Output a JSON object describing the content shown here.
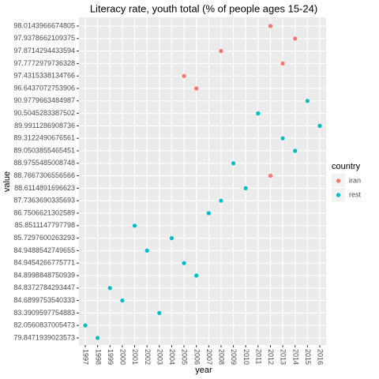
{
  "chart_data": {
    "type": "scatter",
    "title": "Literacy rate, youth total (% of people ages 15-24)",
    "x_label": "year",
    "y_label": "value",
    "legend_title": "country",
    "xcategories": [
      "1997",
      "1998",
      "1999",
      "2000",
      "2001",
      "2002",
      "2003",
      "2004",
      "2005",
      "2006",
      "2007",
      "2008",
      "2009",
      "2010",
      "2011",
      "2012",
      "2013",
      "2014",
      "2015",
      "2016"
    ],
    "yticks": [
      79.8471939023573,
      82.0560837005473,
      83.3909597754883,
      84.6899753540333,
      84.8372784293447,
      84.8998848750939,
      84.9454266775771,
      84.9488542749655,
      85.7297600263293,
      85.8511147797798,
      86.7506621302589,
      87.7363690335693,
      88.6114891696623,
      88.7667306556566,
      88.9755485008748,
      89.0503855465451,
      89.3122490676561,
      89.9911286908736,
      90.5045283387502,
      90.9779663484987,
      96.6437072753906,
      97.4315338134766,
      97.7772979736328,
      97.8714294433594,
      97.9378662109375,
      98.0143966674805
    ],
    "grid": true,
    "series": [
      {
        "name": "iran",
        "color": "#F8766D",
        "x": [
          "2012",
          "2014",
          "2008",
          "2013",
          "2005",
          "2006",
          "2012"
        ],
        "values": [
          98.0143966674805,
          97.9378662109375,
          97.8714294433594,
          97.7772979736328,
          97.4315338134766,
          96.6437072753906,
          88.7667306556566
        ]
      },
      {
        "name": "rest",
        "color": "#00BFC4",
        "x": [
          "2015",
          "2011",
          "2016",
          "2013",
          "2014",
          "2009",
          "2010",
          "2008",
          "2007",
          "2001",
          "2004",
          "2002",
          "2005",
          "2006",
          "1999",
          "2000",
          "2003",
          "1997",
          "1998"
        ],
        "values": [
          90.9779663484987,
          90.5045283387502,
          89.9911286908736,
          89.3122490676561,
          89.0503855465451,
          88.9755485008748,
          88.6114891696623,
          87.7363690335693,
          86.7506621302589,
          85.8511147797798,
          85.7297600263293,
          84.9488542749655,
          84.9454266775771,
          84.8998848750939,
          84.8372784293447,
          84.6899753540333,
          83.3909597754883,
          82.0560837005473,
          79.8471939023573
        ]
      }
    ]
  }
}
